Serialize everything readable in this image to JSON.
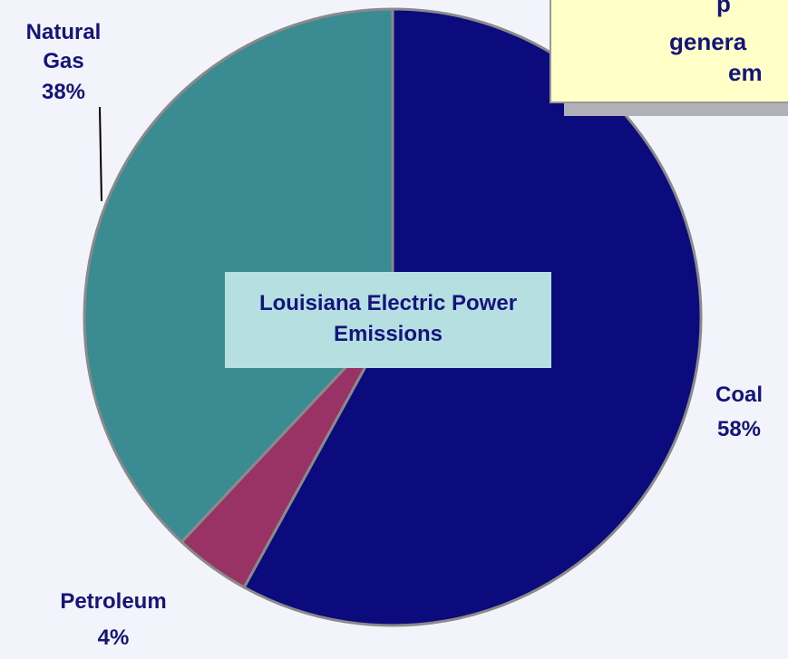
{
  "chart_data": {
    "type": "pie",
    "title": "Louisiana Electric Power Emissions",
    "annotation": [
      "p",
      "genera",
      "em"
    ],
    "categories": [
      "Coal",
      "Petroleum",
      "Natural Gas"
    ],
    "values": [
      58,
      4,
      38
    ],
    "value_labels": [
      "58%",
      "4%",
      "38%"
    ],
    "colors": [
      "#0b0b7d",
      "#993366",
      "#3b8b93"
    ],
    "start_angle": 0,
    "direction": "clockwise"
  }
}
